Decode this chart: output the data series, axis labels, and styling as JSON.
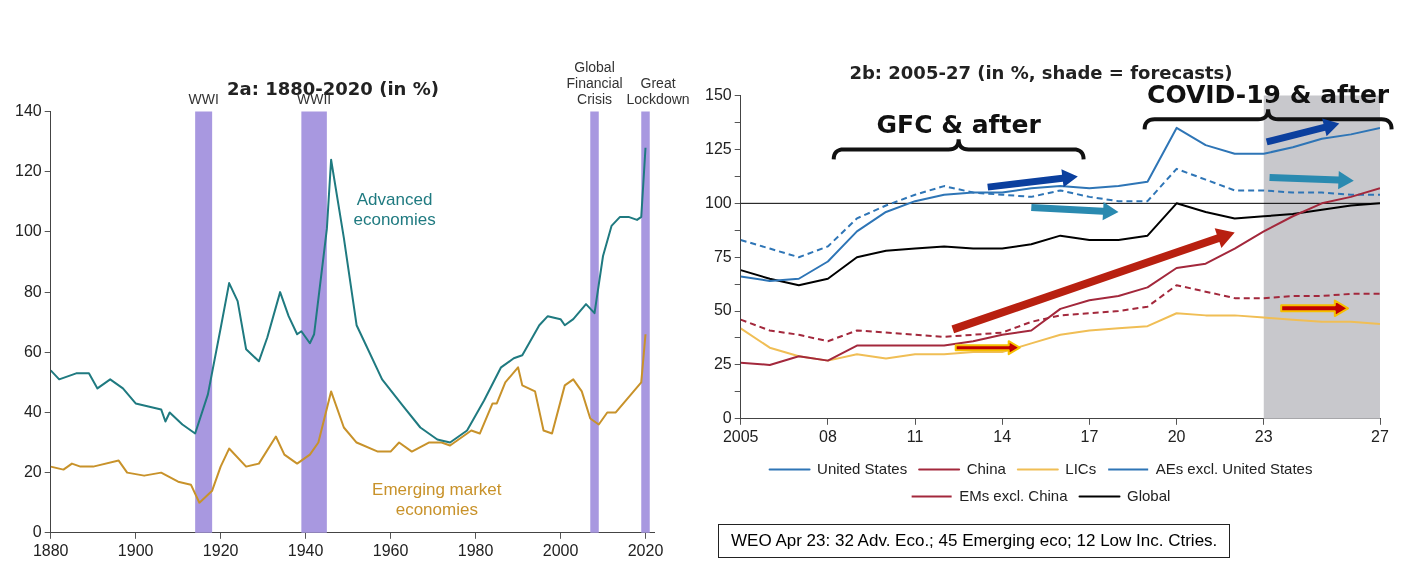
{
  "chart_data": [
    {
      "type": "line",
      "title": "2a: 1880-2020 (in %)",
      "xlim": [
        1880,
        2022
      ],
      "xticks": [
        1880,
        1900,
        1920,
        1940,
        1960,
        1980,
        2000,
        2020
      ],
      "ylim": [
        0,
        140
      ],
      "yticks": [
        0,
        20,
        40,
        60,
        80,
        100,
        120,
        140
      ],
      "grid": false,
      "legend": false,
      "series": [
        {
          "name": "Advanced economies",
          "color": "#1f7a80",
          "x": [
            1880,
            1882,
            1886,
            1889,
            1891,
            1894,
            1897,
            1900,
            1903,
            1906,
            1907,
            1908,
            1911,
            1914,
            1917,
            1920,
            1922,
            1924,
            1926,
            1929,
            1931,
            1934,
            1936,
            1938,
            1939,
            1941,
            1942,
            1945,
            1946,
            1949,
            1952,
            1954,
            1958,
            1963,
            1967,
            1971,
            1974,
            1978,
            1982,
            1986,
            1989,
            1991,
            1995,
            1997,
            2000,
            2001,
            2003,
            2006,
            2008,
            2010,
            2012,
            2014,
            2016,
            2018,
            2019,
            2020
          ],
          "values": [
            54,
            51,
            53,
            53,
            48,
            51,
            48,
            43,
            42,
            41,
            37,
            40,
            36,
            33,
            46,
            68,
            83,
            77,
            61,
            57,
            65,
            80,
            72,
            66,
            67,
            63,
            66,
            101,
            124,
            98,
            69,
            63,
            51,
            42,
            35,
            31,
            30,
            34,
            44,
            55,
            58,
            59,
            69,
            72,
            71,
            69,
            71,
            76,
            73,
            92,
            102,
            105,
            105,
            104,
            105,
            128
          ]
        },
        {
          "name": "Emerging market economies",
          "color": "#c8922a",
          "x": [
            1880,
            1883,
            1885,
            1887,
            1890,
            1896,
            1898,
            1902,
            1906,
            1910,
            1913,
            1915,
            1918,
            1920,
            1922,
            1926,
            1929,
            1933,
            1935,
            1938,
            1941,
            1943,
            1946,
            1949,
            1952,
            1957,
            1960,
            1962,
            1965,
            1969,
            1972,
            1974,
            1979,
            1981,
            1984,
            1985,
            1987,
            1990,
            1991,
            1994,
            1996,
            1998,
            2001,
            2003,
            2005,
            2007,
            2009,
            2011,
            2013,
            2016,
            2019,
            2020
          ],
          "values": [
            22,
            21,
            23,
            22,
            22,
            24,
            20,
            19,
            20,
            17,
            16,
            10,
            14,
            22,
            28,
            22,
            23,
            32,
            26,
            23,
            26,
            30,
            47,
            35,
            30,
            27,
            27,
            30,
            27,
            30,
            30,
            29,
            34,
            33,
            43,
            43,
            50,
            55,
            49,
            47,
            34,
            33,
            49,
            51,
            47,
            38,
            36,
            40,
            40,
            45,
            50,
            66
          ]
        }
      ],
      "bands": [
        {
          "axis": "x",
          "from": 1914,
          "to": 1918,
          "label": "WWI",
          "color": "#a898e0"
        },
        {
          "axis": "x",
          "from": 1939,
          "to": 1945,
          "label": "WWII",
          "color": "#a898e0"
        },
        {
          "axis": "x",
          "from": 2007,
          "to": 2009,
          "label": "Global Financial Crisis",
          "color": "#a898e0"
        },
        {
          "axis": "x",
          "from": 2019,
          "to": 2021,
          "label": "Great Lockdown",
          "color": "#a898e0"
        }
      ]
    },
    {
      "type": "line",
      "title": "2b: 2005-27 (in %, shade = forecasts)",
      "x": [
        2005,
        2006,
        2007,
        2008,
        2009,
        2010,
        2011,
        2012,
        2013,
        2014,
        2015,
        2016,
        2017,
        2018,
        2019,
        2020,
        2021,
        2022,
        2023,
        2024,
        2025,
        2026,
        2027
      ],
      "xlim": [
        2005,
        2027
      ],
      "xticks": [
        2005,
        {
          "value": 2008,
          "label": "08"
        },
        {
          "value": 2011,
          "label": "11"
        },
        {
          "value": 2014,
          "label": "14"
        },
        {
          "value": 2017,
          "label": "17"
        },
        {
          "value": 2020,
          "label": "20"
        },
        {
          "value": 2023,
          "label": "23"
        },
        {
          "value": 2027,
          "label": "27"
        }
      ],
      "ylim": [
        0,
        150
      ],
      "yticks": [
        0,
        {
          "value": 12.5,
          "label": null
        },
        25,
        {
          "value": 37.5,
          "label": null
        },
        50,
        {
          "value": 62.5,
          "label": null
        },
        75,
        {
          "value": 87.5,
          "label": null
        },
        100,
        {
          "value": 112.5,
          "label": null
        },
        125,
        {
          "value": 137.5,
          "label": null
        },
        150
      ],
      "grid": false,
      "legend": "bottom",
      "series": [
        {
          "name": "United States",
          "color": "#2e75b6",
          "line_style": "solid",
          "values": [
            66,
            64,
            65,
            73,
            87,
            96,
            101,
            104,
            105,
            105,
            107,
            108,
            107,
            108,
            110,
            135,
            127,
            123,
            123,
            126,
            130,
            132,
            135
          ]
        },
        {
          "name": "China",
          "color": "#a3283c",
          "line_style": "solid",
          "values": [
            26,
            25,
            29,
            27,
            34,
            34,
            34,
            34,
            36,
            39,
            41,
            51,
            55,
            57,
            61,
            70,
            72,
            79,
            87,
            94,
            100,
            103,
            107
          ]
        },
        {
          "name": "LICs",
          "color": "#f0be55",
          "line_style": "solid",
          "values": [
            42,
            33,
            29,
            27,
            30,
            28,
            30,
            30,
            31,
            31,
            35,
            39,
            41,
            42,
            43,
            49,
            48,
            48,
            47,
            46,
            45,
            45,
            44
          ]
        },
        {
          "name": "AEs excl. United States",
          "color": "#2e75b6",
          "line_style": "dashed",
          "values": [
            83,
            79,
            75,
            80,
            93,
            99,
            104,
            108,
            105,
            104,
            103,
            106,
            103,
            101,
            101,
            116,
            111,
            106,
            106,
            105,
            105,
            104,
            104
          ]
        },
        {
          "name": "EMs excl. China",
          "color": "#a3283c",
          "line_style": "dashed",
          "values": [
            46,
            41,
            39,
            36,
            41,
            40,
            39,
            38,
            39,
            40,
            45,
            48,
            49,
            50,
            52,
            62,
            59,
            56,
            56,
            57,
            57,
            58,
            58
          ]
        },
        {
          "name": "Global",
          "color": "#000000",
          "line_style": "solid",
          "values": [
            69,
            65,
            62,
            65,
            75,
            78,
            79,
            80,
            79,
            79,
            81,
            85,
            83,
            83,
            85,
            100,
            96,
            93,
            94,
            95,
            97,
            99,
            100
          ]
        }
      ],
      "ref_lines": [
        {
          "axis": "y",
          "value": 100,
          "color": "#000000"
        }
      ],
      "bands": [
        {
          "axis": "x",
          "from": 2023,
          "to": 2027,
          "color": "#c8c8cc"
        }
      ],
      "annotations": [
        "GFC & after",
        "COVID-19 & after",
        "WEO Apr 23: 32 Adv. Eco.; 45 Emerging eco; 12 Low Inc. Ctries."
      ]
    }
  ]
}
